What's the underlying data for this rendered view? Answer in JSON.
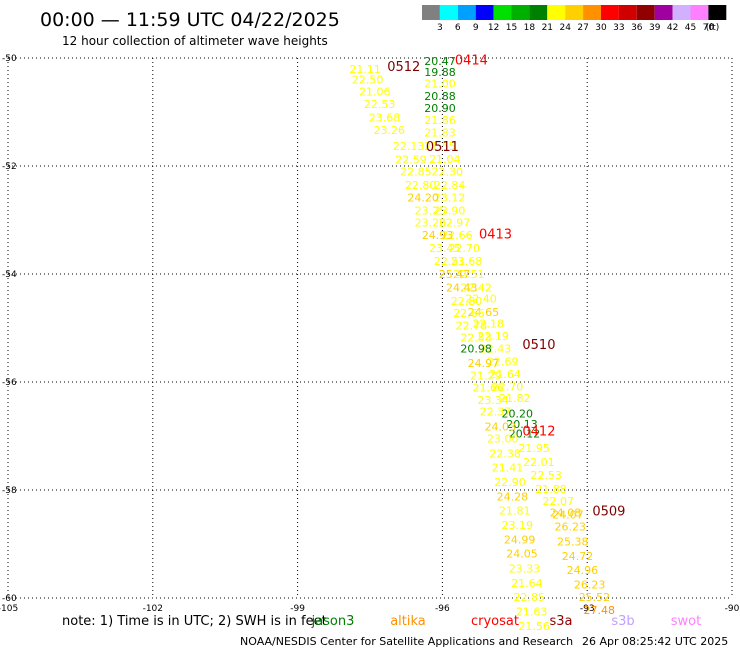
{
  "title": "00:00 — 11:59 UTC 04/22/2025",
  "subtitle": "12 hour collection of altimeter wave heights",
  "colorbar": {
    "unit": "(ft)",
    "items": [
      {
        "label": "3",
        "color": "#808080"
      },
      {
        "label": "6",
        "color": "#00ffff"
      },
      {
        "label": "9",
        "color": "#00a0ff"
      },
      {
        "label": "12",
        "color": "#0000ff"
      },
      {
        "label": "15",
        "color": "#00e000"
      },
      {
        "label": "18",
        "color": "#00b000"
      },
      {
        "label": "21",
        "color": "#008000"
      },
      {
        "label": "24",
        "color": "#ffff00"
      },
      {
        "label": "27",
        "color": "#ffd000"
      },
      {
        "label": "30",
        "color": "#ff9000"
      },
      {
        "label": "33",
        "color": "#ff0000"
      },
      {
        "label": "36",
        "color": "#d00000"
      },
      {
        "label": "39",
        "color": "#900000"
      },
      {
        "label": "42",
        "color": "#a000a0"
      },
      {
        "label": "45",
        "color": "#d0b0ff"
      },
      {
        "label": "70",
        "color": "#ff80ff"
      },
      {
        "label": "",
        "color": "#000000"
      }
    ]
  },
  "chart_data": {
    "type": "scatter",
    "xlim": [
      -105,
      -90
    ],
    "ylim": [
      -60,
      -50
    ],
    "xticks": [
      -105,
      -102,
      -99,
      -96,
      -93,
      -90
    ],
    "yticks": [
      -50,
      -52,
      -54,
      -56,
      -58,
      -60
    ],
    "grid": true,
    "points": [
      {
        "x": -96.05,
        "y": -50.06,
        "label": "20.47"
      },
      {
        "x": -96.05,
        "y": -50.26,
        "label": "19.88"
      },
      {
        "x": -96.05,
        "y": -50.47,
        "label": "21.00"
      },
      {
        "x": -96.05,
        "y": -50.7,
        "label": "20.88"
      },
      {
        "x": -96.05,
        "y": -50.93,
        "label": "20.90"
      },
      {
        "x": -96.05,
        "y": -51.15,
        "label": "21.86"
      },
      {
        "x": -96.05,
        "y": -51.38,
        "label": "21.83"
      },
      {
        "x": -96.05,
        "y": -51.63,
        "label": "21.55"
      },
      {
        "x": -95.95,
        "y": -51.87,
        "label": "21.04"
      },
      {
        "x": -95.9,
        "y": -52.1,
        "label": "22.30"
      },
      {
        "x": -95.85,
        "y": -52.35,
        "label": "22.84"
      },
      {
        "x": -95.85,
        "y": -52.58,
        "label": "23.12"
      },
      {
        "x": -95.85,
        "y": -52.82,
        "label": "23.90"
      },
      {
        "x": -95.75,
        "y": -53.05,
        "label": "22.97"
      },
      {
        "x": -95.7,
        "y": -53.28,
        "label": "22.66"
      },
      {
        "x": -95.55,
        "y": -53.52,
        "label": "22.70"
      },
      {
        "x": -95.5,
        "y": -53.76,
        "label": "23.68"
      },
      {
        "x": -95.45,
        "y": -54.0,
        "label": "22.51"
      },
      {
        "x": -95.3,
        "y": -54.25,
        "label": "22.42"
      },
      {
        "x": -95.2,
        "y": -54.45,
        "label": "22.40"
      },
      {
        "x": -95.15,
        "y": -54.7,
        "label": "24.65"
      },
      {
        "x": -95.05,
        "y": -54.92,
        "label": "22.18"
      },
      {
        "x": -94.95,
        "y": -55.15,
        "label": "22.19"
      },
      {
        "x": -94.9,
        "y": -55.38,
        "label": "22.43"
      },
      {
        "x": -94.75,
        "y": -55.62,
        "label": "22.69"
      },
      {
        "x": -94.7,
        "y": -55.85,
        "label": "21.64"
      },
      {
        "x": -94.65,
        "y": -56.08,
        "label": "22.70"
      },
      {
        "x": -94.5,
        "y": -56.3,
        "label": "21.82"
      },
      {
        "x": -94.45,
        "y": -56.58,
        "label": "20.20"
      },
      {
        "x": -94.35,
        "y": -56.78,
        "label": "20.13"
      },
      {
        "x": -94.3,
        "y": -56.95,
        "label": "20.12"
      },
      {
        "x": -94.1,
        "y": -57.22,
        "label": "21.95"
      },
      {
        "x": -94.0,
        "y": -57.48,
        "label": "22.01"
      },
      {
        "x": -93.85,
        "y": -57.72,
        "label": "22.53"
      },
      {
        "x": -93.75,
        "y": -57.98,
        "label": "21.88"
      },
      {
        "x": -93.6,
        "y": -58.2,
        "label": "22.07"
      },
      {
        "x": -93.45,
        "y": -58.42,
        "label": "24.08"
      },
      {
        "x": -93.4,
        "y": -58.45,
        "label": "24.07"
      },
      {
        "x": -93.35,
        "y": -58.68,
        "label": "26.23"
      },
      {
        "x": -93.3,
        "y": -58.95,
        "label": "25.38"
      },
      {
        "x": -93.2,
        "y": -59.22,
        "label": "24.72"
      },
      {
        "x": -93.1,
        "y": -59.48,
        "label": "24.96"
      },
      {
        "x": -92.95,
        "y": -59.75,
        "label": "26.23"
      },
      {
        "x": -92.85,
        "y": -59.98,
        "label": "25.52"
      },
      {
        "x": -92.75,
        "y": -60.22,
        "label": "27.48"
      },
      {
        "x": -97.6,
        "y": -50.2,
        "label": "21.11"
      },
      {
        "x": -97.55,
        "y": -50.4,
        "label": "22.50"
      },
      {
        "x": -97.4,
        "y": -50.62,
        "label": "21.06"
      },
      {
        "x": -97.3,
        "y": -50.85,
        "label": "22.53"
      },
      {
        "x": -97.2,
        "y": -51.1,
        "label": "23.68"
      },
      {
        "x": -97.1,
        "y": -51.33,
        "label": "23.26"
      },
      {
        "x": -96.7,
        "y": -51.63,
        "label": "22.13"
      },
      {
        "x": -96.65,
        "y": -51.88,
        "label": "22.59"
      },
      {
        "x": -96.55,
        "y": -52.1,
        "label": "22.85"
      },
      {
        "x": -96.45,
        "y": -52.35,
        "label": "22.80"
      },
      {
        "x": -96.4,
        "y": -52.58,
        "label": "24.20"
      },
      {
        "x": -96.25,
        "y": -52.82,
        "label": "23.25"
      },
      {
        "x": -96.25,
        "y": -53.05,
        "label": "23.26"
      },
      {
        "x": -96.1,
        "y": -53.28,
        "label": "24.93"
      },
      {
        "x": -95.95,
        "y": -53.52,
        "label": "23.45"
      },
      {
        "x": -95.85,
        "y": -53.76,
        "label": "22.51"
      },
      {
        "x": -95.75,
        "y": -54.0,
        "label": "25.47"
      },
      {
        "x": -95.6,
        "y": -54.25,
        "label": "24.43"
      },
      {
        "x": -95.5,
        "y": -54.5,
        "label": "22.80"
      },
      {
        "x": -95.45,
        "y": -54.72,
        "label": "22.66"
      },
      {
        "x": -95.4,
        "y": -54.95,
        "label": "22.78"
      },
      {
        "x": -95.3,
        "y": -55.18,
        "label": "22.53"
      },
      {
        "x": -95.3,
        "y": -55.38,
        "label": "20.98"
      },
      {
        "x": -95.15,
        "y": -55.65,
        "label": "24.97"
      },
      {
        "x": -95.1,
        "y": -55.88,
        "label": "21.29"
      },
      {
        "x": -95.05,
        "y": -56.1,
        "label": "21.66"
      },
      {
        "x": -94.95,
        "y": -56.33,
        "label": "23.34"
      },
      {
        "x": -94.9,
        "y": -56.55,
        "label": "22.37"
      },
      {
        "x": -94.8,
        "y": -56.82,
        "label": "24.03"
      },
      {
        "x": -94.75,
        "y": -57.05,
        "label": "23.00"
      },
      {
        "x": -94.7,
        "y": -57.32,
        "label": "22.38"
      },
      {
        "x": -94.65,
        "y": -57.58,
        "label": "21.41"
      },
      {
        "x": -94.6,
        "y": -57.85,
        "label": "22.90"
      },
      {
        "x": -94.55,
        "y": -58.12,
        "label": "24.28"
      },
      {
        "x": -94.5,
        "y": -58.38,
        "label": "21.81"
      },
      {
        "x": -94.45,
        "y": -58.65,
        "label": "23.19"
      },
      {
        "x": -94.4,
        "y": -58.92,
        "label": "24.99"
      },
      {
        "x": -94.35,
        "y": -59.18,
        "label": "24.05"
      },
      {
        "x": -94.3,
        "y": -59.45,
        "label": "23.33"
      },
      {
        "x": -94.25,
        "y": -59.72,
        "label": "21.64"
      },
      {
        "x": -94.2,
        "y": -59.98,
        "label": "22.85"
      },
      {
        "x": -94.15,
        "y": -60.25,
        "label": "21.63"
      },
      {
        "x": -94.1,
        "y": -60.52,
        "label": "21.56"
      }
    ],
    "pass_labels": [
      {
        "x": -95.4,
        "y": -50.03,
        "label": "0414",
        "color": "#ff0000"
      },
      {
        "x": -96.8,
        "y": -50.15,
        "label": "0512",
        "color": "#800000"
      },
      {
        "x": -96.0,
        "y": -51.63,
        "label": "0511",
        "color": "#800000"
      },
      {
        "x": -94.9,
        "y": -53.25,
        "label": "0413",
        "color": "#ff0000"
      },
      {
        "x": -94.0,
        "y": -55.3,
        "label": "0510",
        "color": "#800000"
      },
      {
        "x": -94.0,
        "y": -56.9,
        "label": "0412",
        "color": "#ff0000"
      },
      {
        "x": -92.55,
        "y": -58.38,
        "label": "0509",
        "color": "#800000"
      }
    ]
  },
  "note": "note: 1) Time is in UTC; 2) SWH is in feet",
  "satellites": [
    {
      "name": "jason3",
      "color": "#008000"
    },
    {
      "name": "altika",
      "color": "#ff9000"
    },
    {
      "name": "cryosat",
      "color": "#ff0000"
    },
    {
      "name": "s3a",
      "color": "#900000"
    },
    {
      "name": "s3b",
      "color": "#c0a0ff"
    },
    {
      "name": "swot",
      "color": "#ff80ff"
    }
  ],
  "footer": {
    "credit": "NOAA/NESDIS Center for Satellite Applications and Research",
    "timestamp": "26 Apr 08:25:42 UTC 2025"
  }
}
